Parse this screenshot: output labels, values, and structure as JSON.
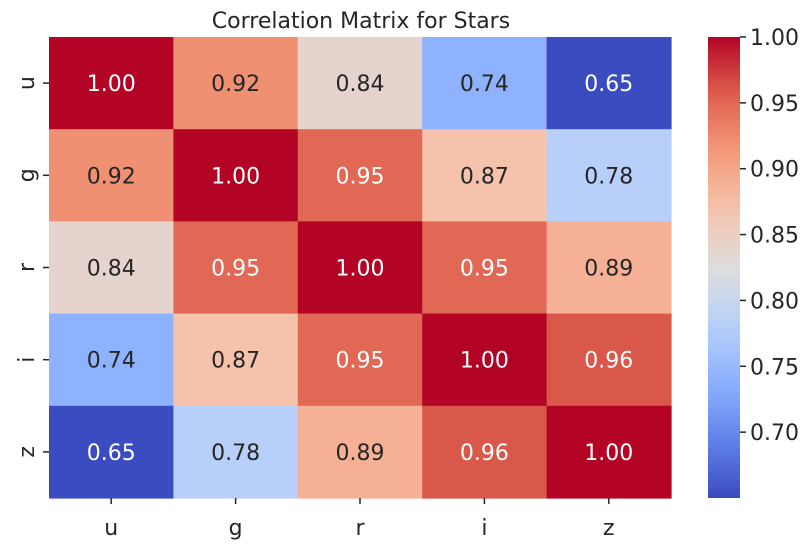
{
  "chart_data": {
    "type": "heatmap",
    "title": "Correlation Matrix for Stars",
    "xlabel": "",
    "ylabel": "",
    "x_categories": [
      "u",
      "g",
      "r",
      "i",
      "z"
    ],
    "y_categories": [
      "u",
      "g",
      "r",
      "i",
      "z"
    ],
    "values": [
      [
        1.0,
        0.92,
        0.84,
        0.74,
        0.65
      ],
      [
        0.92,
        1.0,
        0.95,
        0.87,
        0.78
      ],
      [
        0.84,
        0.95,
        1.0,
        0.95,
        0.89
      ],
      [
        0.74,
        0.87,
        0.95,
        1.0,
        0.96
      ],
      [
        0.65,
        0.78,
        0.89,
        0.96,
        1.0
      ]
    ],
    "value_format": "0.00",
    "colormap": "coolwarm",
    "colorbar": {
      "range": [
        0.65,
        1.0
      ],
      "ticks": [
        0.7,
        0.75,
        0.8,
        0.85,
        0.9,
        0.95,
        1.0
      ],
      "tick_labels": [
        "0.70",
        "0.75",
        "0.80",
        "0.85",
        "0.90",
        "0.95",
        "1.00"
      ]
    },
    "colors": {
      "low": "#3b4cc0",
      "high": "#b40426",
      "label_on_dark": "#ffffff",
      "label_on_light": "#262626"
    },
    "grid": false
  }
}
